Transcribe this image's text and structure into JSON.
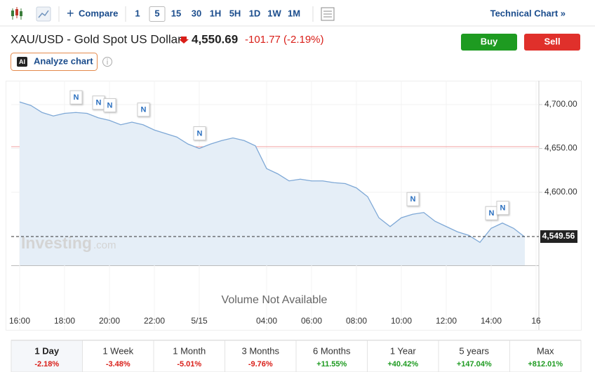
{
  "toolbar": {
    "compare": "Compare",
    "intervals": [
      "1",
      "5",
      "15",
      "30",
      "1H",
      "5H",
      "1D",
      "1W",
      "1M"
    ],
    "selected_interval": "5",
    "technical_chart": "Technical Chart »"
  },
  "header": {
    "title": "XAU/USD - Gold Spot US Dollar",
    "price": "4,550.69",
    "change": "-101.77",
    "change_percent": "(-2.19%)",
    "ai_badge": "AI",
    "analyze": "Analyze chart"
  },
  "actions": {
    "buy": "Buy",
    "sell": "Sell"
  },
  "chart_data": {
    "type": "area",
    "color": "#7ea8d6",
    "categories": [
      "16:00",
      null,
      null,
      null,
      "18:00",
      null,
      null,
      null,
      "20:00",
      null,
      null,
      null,
      "22:00",
      null,
      null,
      null,
      "5/15",
      null,
      null,
      null,
      null,
      null,
      "04:00",
      null,
      null,
      null,
      "06:00",
      null,
      null,
      null,
      "08:00",
      null,
      null,
      null,
      "10:00",
      null,
      null,
      null,
      "12:00",
      null,
      null,
      null,
      "14:00",
      null,
      null,
      null,
      "16"
    ],
    "values": [
      4703,
      4699,
      4691,
      4687,
      4690,
      4691,
      4690,
      4685,
      4682,
      4677,
      4680,
      4677,
      4671,
      4667,
      4663,
      4655,
      4650,
      4655,
      4659,
      4662,
      4659,
      4653,
      4627,
      4621,
      4613,
      4615,
      4613,
      4613,
      4611,
      4610,
      4605,
      4595,
      4571,
      4561,
      4571,
      4575,
      4577,
      4567,
      4561,
      4555,
      4551,
      4543,
      4559,
      4565,
      4559,
      4549,
      null
    ],
    "ylim": [
      4516.8,
      4727.2
    ],
    "yticks": [
      {
        "value": 4600,
        "label": "4,600.00"
      },
      {
        "value": 4650,
        "label": "4,650.00"
      },
      {
        "value": 4700,
        "label": "4,700.00"
      }
    ],
    "current": {
      "value": 4549.56,
      "label": "4,549.56"
    },
    "previous_close": 4652,
    "news_markers": [
      {
        "index": 5,
        "label": "N"
      },
      {
        "index": 7,
        "label": "N"
      },
      {
        "index": 8,
        "label": "N"
      },
      {
        "index": 11,
        "label": "N"
      },
      {
        "index": 16,
        "label": "N"
      },
      {
        "index": 35,
        "label": "N"
      },
      {
        "index": 42,
        "label": "N"
      },
      {
        "index": 43,
        "label": "N"
      }
    ],
    "watermark": "Investing",
    "watermark_suffix": ".com",
    "volume_note": "Volume Not Available"
  },
  "periods": [
    {
      "label": "1 Day",
      "change": "-2.18%"
    },
    {
      "label": "1 Week",
      "change": "-3.48%"
    },
    {
      "label": "1 Month",
      "change": "-5.01%"
    },
    {
      "label": "3 Months",
      "change": "-9.76%"
    },
    {
      "label": "6 Months",
      "change": "+11.55%"
    },
    {
      "label": "1 Year",
      "change": "+40.42%"
    },
    {
      "label": "5 years",
      "change": "+147.04%"
    },
    {
      "label": "Max",
      "change": "+812.01%"
    }
  ],
  "selected_period": "1 Day"
}
